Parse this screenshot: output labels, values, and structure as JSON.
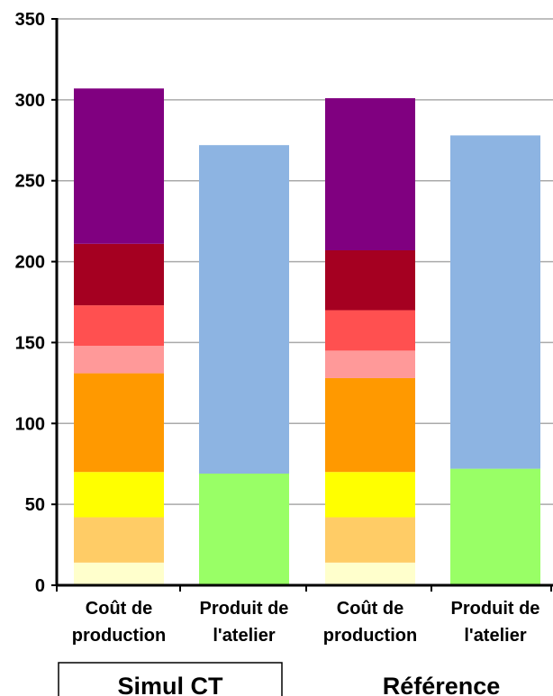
{
  "chart_data": {
    "type": "bar",
    "stacked": true,
    "ylim": [
      0,
      350
    ],
    "yticks": [
      0,
      50,
      100,
      150,
      200,
      250,
      300,
      350
    ],
    "grid": true,
    "groups": [
      {
        "label": "Simul CT",
        "boxed": true
      },
      {
        "label": "Référence",
        "boxed": false
      }
    ],
    "bars": [
      {
        "group": 0,
        "label": [
          "Coût de",
          "production"
        ],
        "segments": [
          {
            "value": 14,
            "color": "#FFFFCC"
          },
          {
            "value": 28,
            "color": "#FFCC66"
          },
          {
            "value": 28,
            "color": "#FFFF00"
          },
          {
            "value": 61,
            "color": "#FF9900"
          },
          {
            "value": 17,
            "color": "#FF9999"
          },
          {
            "value": 25,
            "color": "#FF5050"
          },
          {
            "value": 38,
            "color": "#A50021"
          },
          {
            "value": 96,
            "color": "#800080"
          }
        ]
      },
      {
        "group": 0,
        "label": [
          "Produit de",
          "l'atelier"
        ],
        "segments": [
          {
            "value": 69,
            "color": "#99FF66"
          },
          {
            "value": 203,
            "color": "#8DB4E2"
          }
        ]
      },
      {
        "group": 1,
        "label": [
          "Coût de",
          "production"
        ],
        "segments": [
          {
            "value": 14,
            "color": "#FFFFCC"
          },
          {
            "value": 28,
            "color": "#FFCC66"
          },
          {
            "value": 28,
            "color": "#FFFF00"
          },
          {
            "value": 58,
            "color": "#FF9900"
          },
          {
            "value": 17,
            "color": "#FF9999"
          },
          {
            "value": 25,
            "color": "#FF5050"
          },
          {
            "value": 37,
            "color": "#A50021"
          },
          {
            "value": 94,
            "color": "#800080"
          }
        ]
      },
      {
        "group": 1,
        "label": [
          "Produit de",
          "l'atelier"
        ],
        "segments": [
          {
            "value": 72,
            "color": "#99FF66"
          },
          {
            "value": 206,
            "color": "#8DB4E2"
          }
        ]
      }
    ]
  }
}
